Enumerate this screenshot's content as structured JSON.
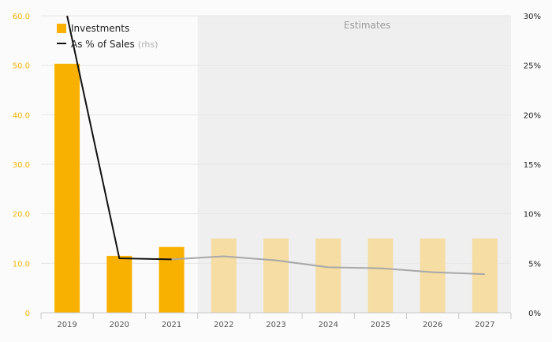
{
  "chart_data": {
    "type": "bar",
    "categories": [
      "2019",
      "2020",
      "2021",
      "2022",
      "2023",
      "2024",
      "2025",
      "2026",
      "2027"
    ],
    "series": [
      {
        "name": "Investments",
        "kind": "bar",
        "axis": "left",
        "values": [
          50.3,
          11.5,
          13.3,
          15.0,
          15.0,
          15.0,
          15.0,
          15.0,
          15.0
        ],
        "estimate_from_index": 3
      },
      {
        "name": "As % of Sales",
        "name_suffix": "(rhs)",
        "kind": "line",
        "axis": "right",
        "values": [
          30.0,
          5.5,
          5.4,
          5.7,
          5.3,
          4.6,
          4.5,
          4.1,
          3.9
        ],
        "estimate_from_index": 2
      }
    ],
    "y_left": {
      "range": [
        0,
        60
      ],
      "ticks": [
        "0",
        "10.0",
        "20.0",
        "30.0",
        "40.0",
        "50.0",
        "60.0"
      ]
    },
    "y_right": {
      "range": [
        0,
        30
      ],
      "ticks": [
        "0%",
        "5%",
        "10%",
        "15%",
        "20%",
        "25%",
        "30%"
      ]
    },
    "estimates_label": "Estimates",
    "estimates_start_category": "2022",
    "legend_position": "top-left",
    "grid": true
  },
  "colors": {
    "bar_actual": "#f8b100",
    "bar_estimate": "#f5dda4",
    "line_actual": "#111111",
    "line_estimate": "#a8a8a8",
    "estimate_band": "#efefef",
    "left_axis_text": "#f0b400"
  }
}
